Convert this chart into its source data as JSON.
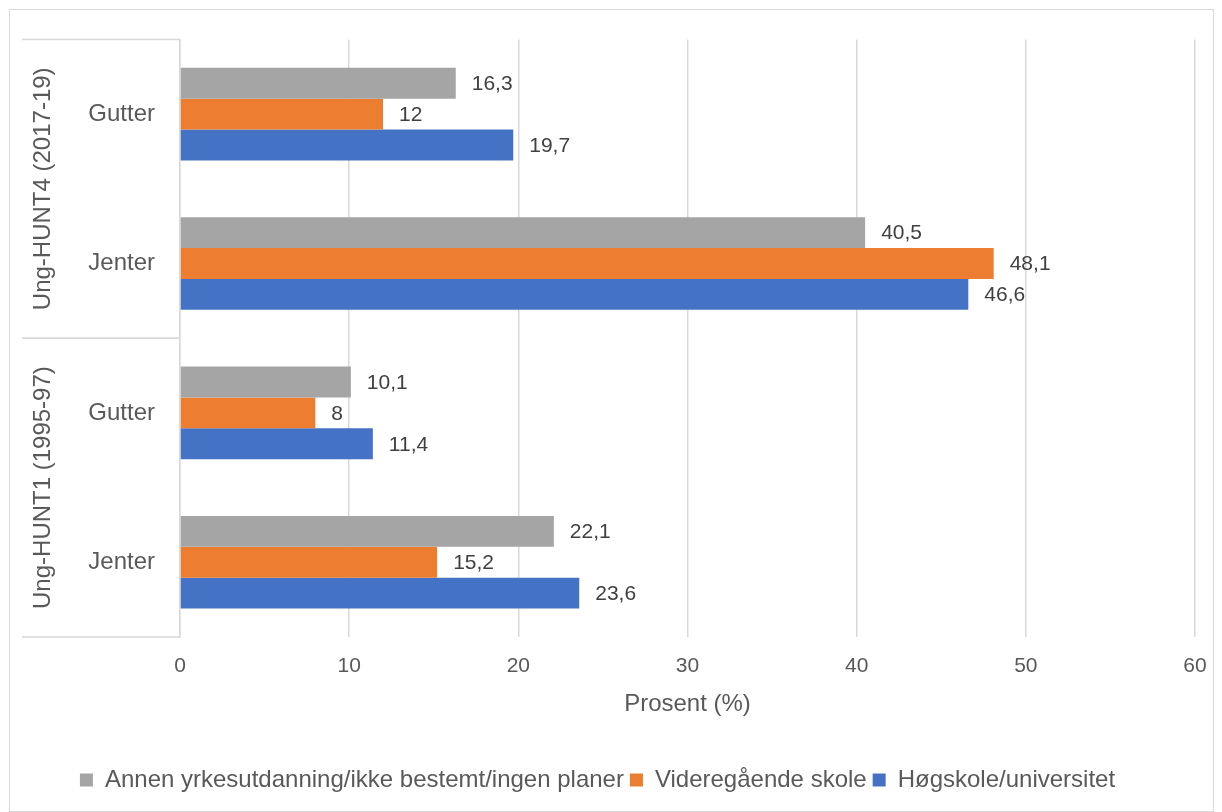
{
  "chart_data": {
    "type": "bar",
    "orientation": "horizontal",
    "categories": [
      "Gutter",
      "Jenter",
      "Gutter",
      "Jenter"
    ],
    "annotations": [
      "Ung-HUNT4 (2017-19)",
      "Ung-HUNT1 (1995-97)"
    ],
    "series": [
      {
        "name": "Annen yrkesutdanning/ikke bestemt/ingen planer",
        "color": "#a5a5a5",
        "values": [
          16.3,
          40.5,
          10.1,
          22.1
        ],
        "value_labels": [
          "16,3",
          "40,5",
          "10,1",
          "22,1"
        ]
      },
      {
        "name": "Videregående skole",
        "color": "#ed7d31",
        "values": [
          12,
          48.1,
          8,
          15.2
        ],
        "value_labels": [
          "12",
          "48,1",
          "8",
          "15,2"
        ]
      },
      {
        "name": "Høgskole/universitet",
        "color": "#4472c4",
        "values": [
          19.7,
          46.6,
          11.4,
          23.6
        ],
        "value_labels": [
          "19,7",
          "46,6",
          "11,4",
          "23,6"
        ]
      }
    ],
    "xlabel": "Prosent (%)",
    "xlim": [
      0,
      60
    ],
    "xticks": [
      0,
      10,
      20,
      30,
      40,
      50,
      60
    ],
    "grid": "x",
    "legend": "bottom"
  }
}
